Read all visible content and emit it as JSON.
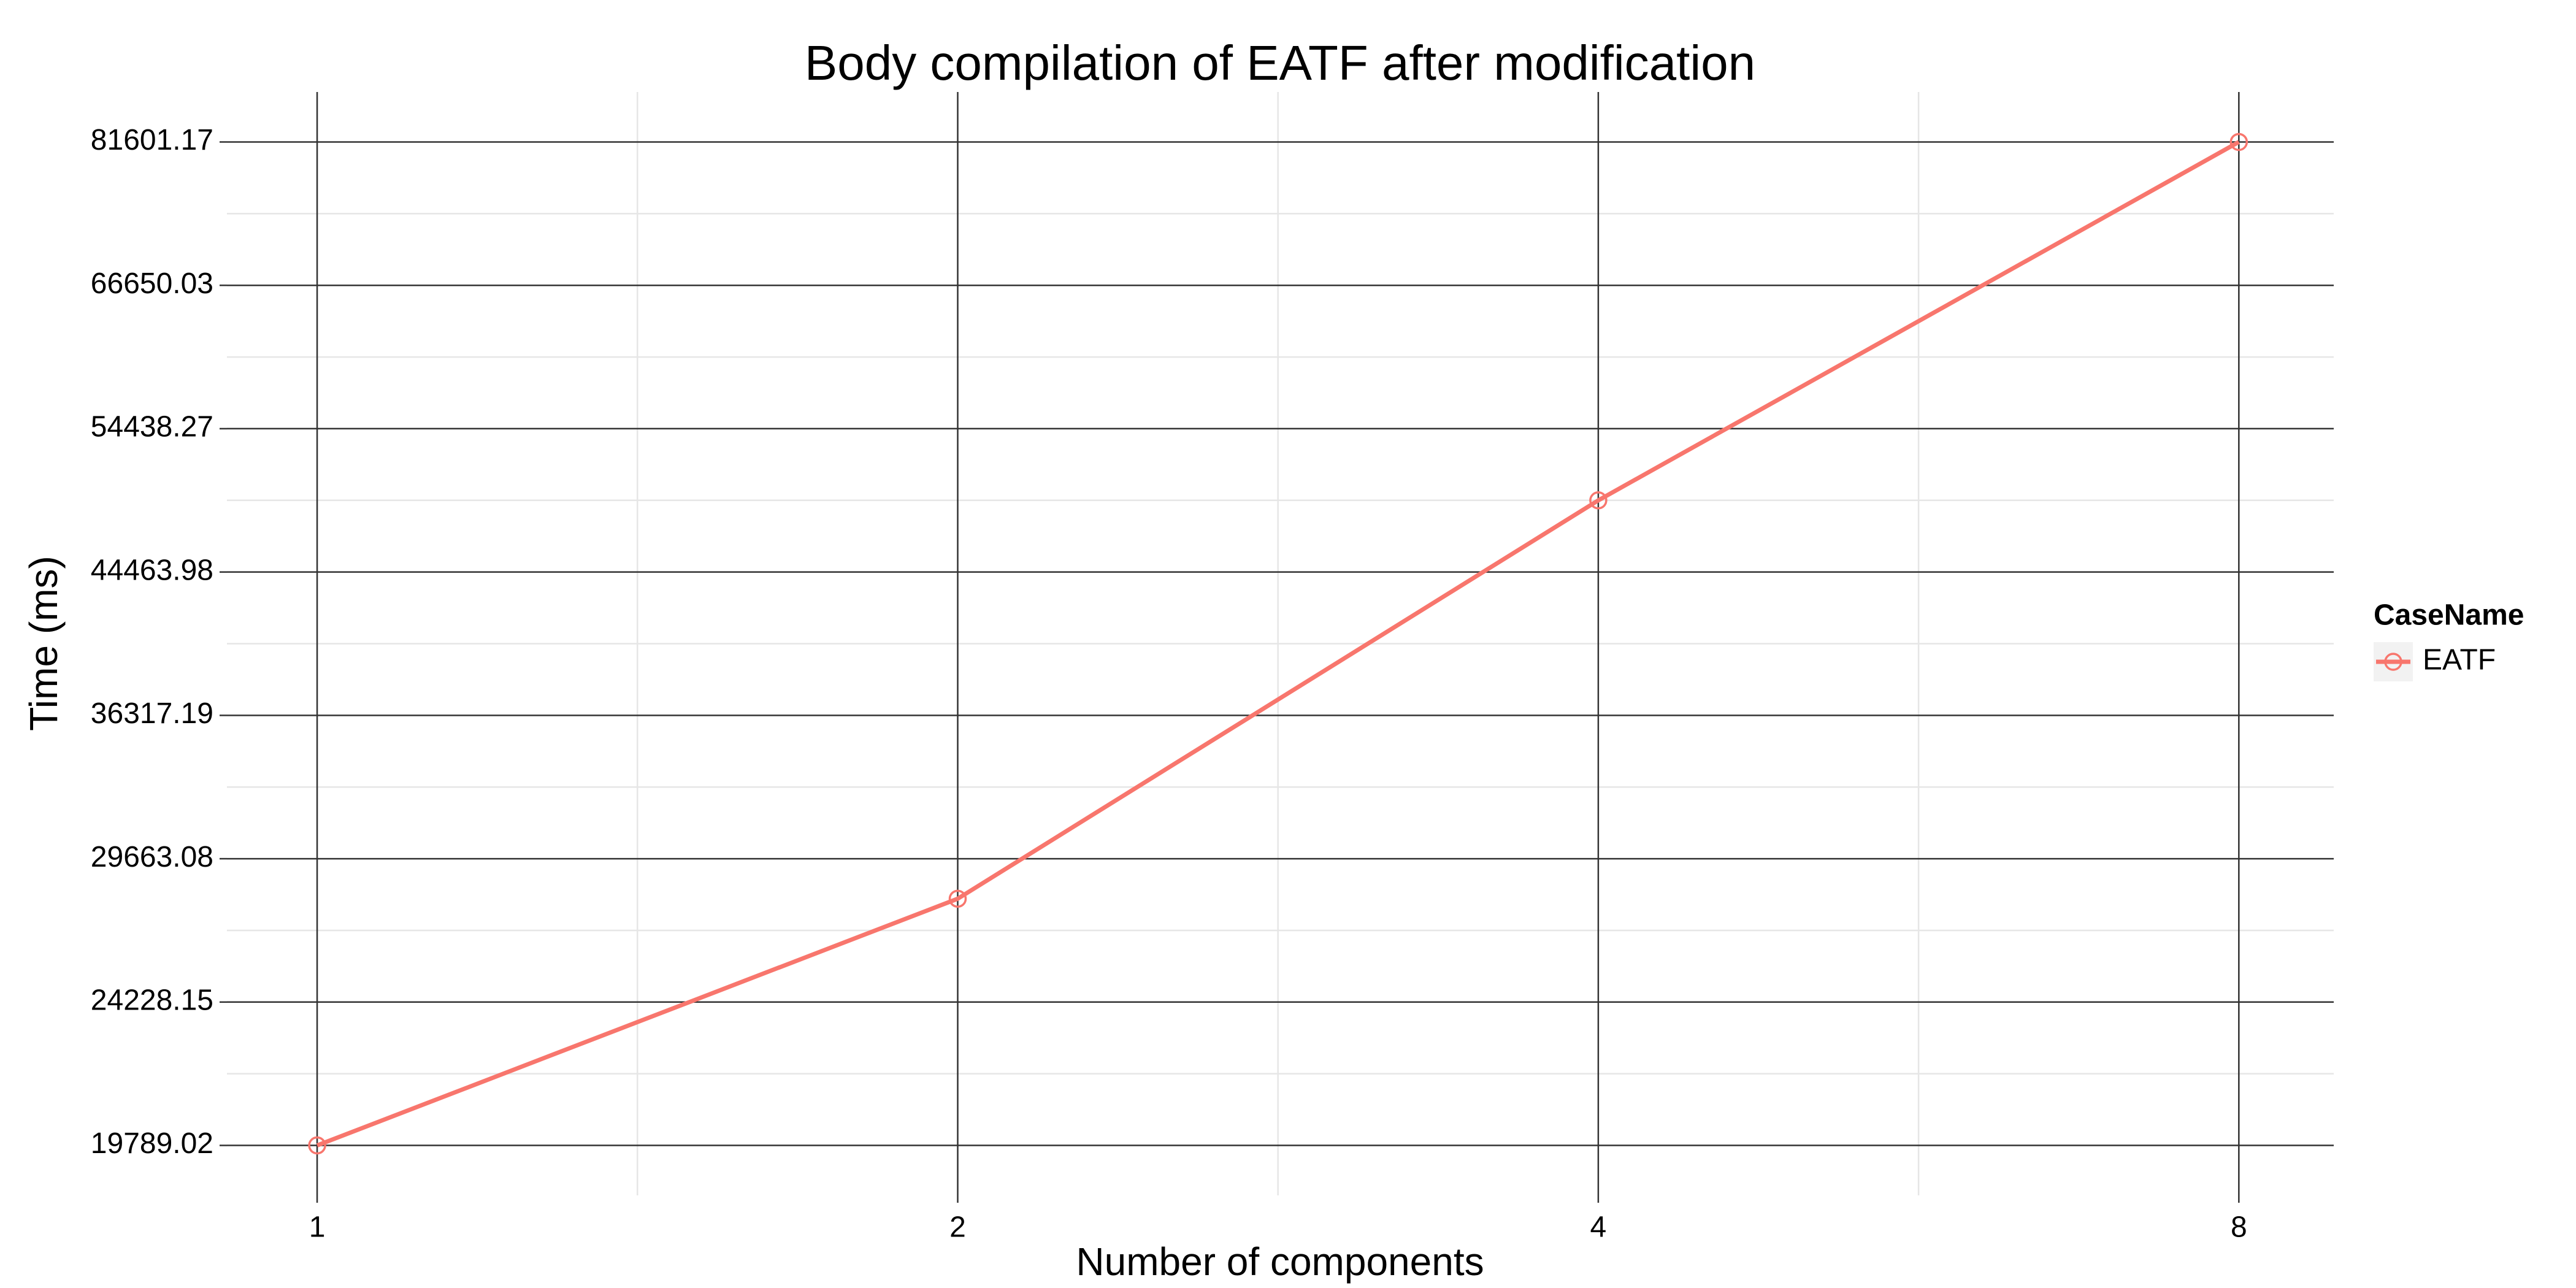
{
  "chart_data": {
    "type": "line",
    "title": "Body compilation of EATF after modification",
    "x_label": "Number of components",
    "y_label": "Time (ms)",
    "x": [
      1,
      2,
      4,
      8
    ],
    "series": [
      {
        "name": "EATF",
        "color": "#F8766D",
        "values": [
          19789.02,
          28034,
          49199,
          81601.17
        ]
      }
    ],
    "xscale": "log",
    "yscale": "log",
    "xlim": [
      0.907,
      8.865
    ],
    "ylim": [
      18441,
      87567
    ],
    "xticks": [
      1,
      2,
      4,
      8
    ],
    "yticks": [
      19789.02,
      24228.15,
      29663.08,
      36317.19,
      44463.98,
      54438.27,
      66650.03,
      81601.17
    ],
    "grid": true,
    "legend_title": "CaseName",
    "legend_position": "right"
  }
}
